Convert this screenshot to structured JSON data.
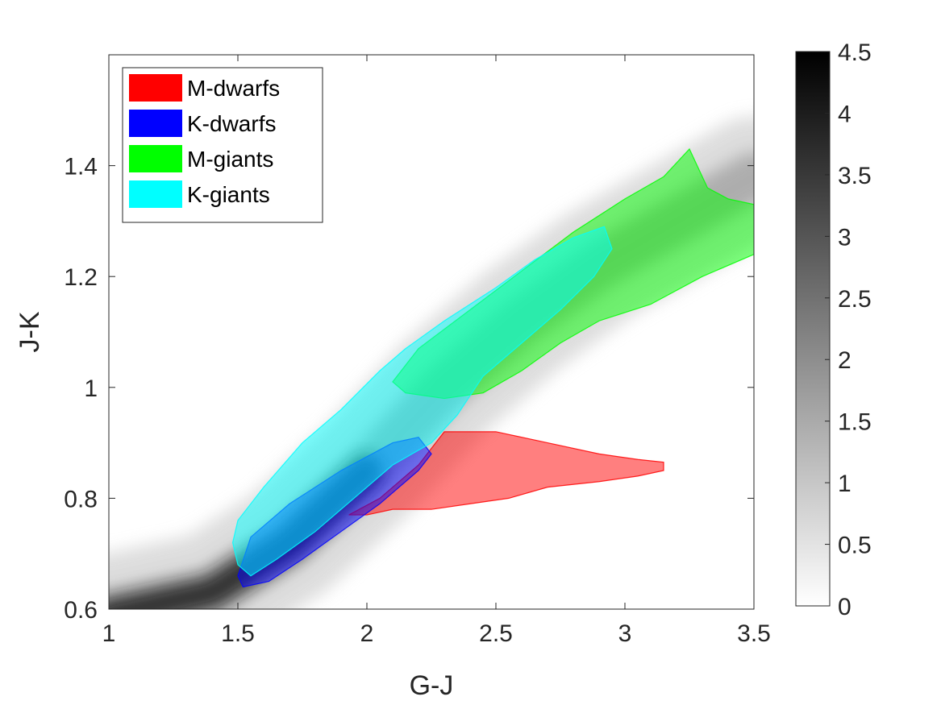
{
  "chart_data": {
    "type": "heatmap",
    "title": "",
    "xlabel": "G-J",
    "ylabel": "J-K",
    "xlim": [
      1,
      3.5
    ],
    "ylim": [
      0.6,
      1.6
    ],
    "xticks": [
      1,
      1.5,
      2,
      2.5,
      3,
      3.5
    ],
    "xtick_labels": [
      "1",
      "1.5",
      "2",
      "2.5",
      "3",
      "3.5"
    ],
    "yticks": [
      0.6,
      0.8,
      1.0,
      1.2,
      1.4
    ],
    "ytick_labels": [
      "0.6",
      "0.8",
      "1",
      "1.2",
      "1.4"
    ],
    "grid": false,
    "legend_location": "top-left",
    "colorbar": {
      "range": [
        0,
        4.5
      ],
      "ticks": [
        0,
        0.5,
        1,
        1.5,
        2,
        2.5,
        3,
        3.5,
        4,
        4.5
      ],
      "tick_labels": [
        "0",
        "0.5",
        "1",
        "1.5",
        "2",
        "2.5",
        "3",
        "3.5",
        "4",
        "4.5"
      ],
      "colormap": "white-to-black"
    },
    "density_ridge": [
      [
        1.0,
        0.59
      ],
      [
        1.4,
        0.63
      ],
      [
        1.7,
        0.72
      ],
      [
        2.0,
        0.85
      ],
      [
        2.3,
        1.0
      ],
      [
        2.6,
        1.12
      ],
      [
        2.9,
        1.22
      ],
      [
        3.2,
        1.3
      ],
      [
        3.5,
        1.38
      ]
    ],
    "regions": [
      {
        "name": "M-dwarfs",
        "color": "#ff0000",
        "polygon": [
          [
            1.93,
            0.77
          ],
          [
            2.05,
            0.8
          ],
          [
            2.2,
            0.86
          ],
          [
            2.3,
            0.92
          ],
          [
            2.5,
            0.92
          ],
          [
            2.7,
            0.9
          ],
          [
            2.9,
            0.88
          ],
          [
            3.05,
            0.87
          ],
          [
            3.15,
            0.865
          ],
          [
            3.15,
            0.85
          ],
          [
            3.05,
            0.84
          ],
          [
            2.9,
            0.83
          ],
          [
            2.7,
            0.82
          ],
          [
            2.55,
            0.8
          ],
          [
            2.4,
            0.79
          ],
          [
            2.25,
            0.78
          ],
          [
            2.1,
            0.78
          ],
          [
            2.0,
            0.77
          ]
        ]
      },
      {
        "name": "K-dwarfs",
        "color": "#0000ff",
        "polygon": [
          [
            1.5,
            0.66
          ],
          [
            1.55,
            0.73
          ],
          [
            1.7,
            0.79
          ],
          [
            1.9,
            0.85
          ],
          [
            2.1,
            0.9
          ],
          [
            2.2,
            0.91
          ],
          [
            2.25,
            0.88
          ],
          [
            2.2,
            0.85
          ],
          [
            2.05,
            0.79
          ],
          [
            1.9,
            0.74
          ],
          [
            1.75,
            0.69
          ],
          [
            1.62,
            0.65
          ],
          [
            1.52,
            0.64
          ]
        ]
      },
      {
        "name": "M-giants",
        "color": "#00ff00",
        "polygon": [
          [
            2.1,
            1.01
          ],
          [
            2.2,
            1.07
          ],
          [
            2.4,
            1.14
          ],
          [
            2.6,
            1.21
          ],
          [
            2.8,
            1.28
          ],
          [
            3.0,
            1.34
          ],
          [
            3.15,
            1.38
          ],
          [
            3.25,
            1.43
          ],
          [
            3.32,
            1.36
          ],
          [
            3.4,
            1.34
          ],
          [
            3.5,
            1.33
          ],
          [
            3.5,
            1.24
          ],
          [
            3.3,
            1.2
          ],
          [
            3.1,
            1.15
          ],
          [
            2.9,
            1.12
          ],
          [
            2.75,
            1.08
          ],
          [
            2.6,
            1.03
          ],
          [
            2.45,
            0.99
          ],
          [
            2.3,
            0.98
          ],
          [
            2.15,
            0.99
          ]
        ]
      },
      {
        "name": "K-giants",
        "color": "#00ffff",
        "polygon": [
          [
            1.48,
            0.72
          ],
          [
            1.5,
            0.76
          ],
          [
            1.6,
            0.82
          ],
          [
            1.75,
            0.9
          ],
          [
            1.9,
            0.96
          ],
          [
            2.05,
            1.03
          ],
          [
            2.15,
            1.07
          ],
          [
            2.3,
            1.12
          ],
          [
            2.5,
            1.18
          ],
          [
            2.65,
            1.23
          ],
          [
            2.8,
            1.27
          ],
          [
            2.92,
            1.29
          ],
          [
            2.95,
            1.25
          ],
          [
            2.88,
            1.2
          ],
          [
            2.75,
            1.14
          ],
          [
            2.6,
            1.08
          ],
          [
            2.45,
            1.02
          ],
          [
            2.35,
            0.95
          ],
          [
            2.25,
            0.9
          ],
          [
            2.1,
            0.86
          ],
          [
            1.95,
            0.8
          ],
          [
            1.8,
            0.74
          ],
          [
            1.65,
            0.69
          ],
          [
            1.55,
            0.66
          ],
          [
            1.5,
            0.68
          ]
        ]
      }
    ]
  }
}
